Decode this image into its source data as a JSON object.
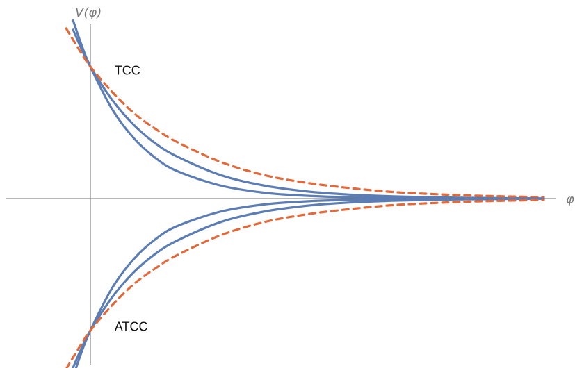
{
  "chart_data": {
    "type": "line",
    "title": "",
    "xlabel": "φ",
    "ylabel": "V(φ)",
    "xlim": [
      -1,
      5.25
    ],
    "ylim": [
      -1.26,
      1.26
    ],
    "grid": false,
    "legend": "none",
    "annotations": [
      {
        "text": "TCC",
        "x": 0.28,
        "y": 0.97
      },
      {
        "text": "ATCC",
        "x": 0.28,
        "y": -0.97
      }
    ],
    "series": [
      {
        "style": "solid",
        "color": "#5b7db3",
        "x": [
          -0.2,
          -0.1,
          0,
          0.25,
          0.5,
          0.75,
          1,
          1.5,
          2,
          2.5,
          3,
          3.5,
          4,
          4.5,
          5.25
        ],
        "y": [
          1.35,
          1.16,
          1.0,
          0.68,
          0.46,
          0.31,
          0.21,
          0.1,
          0.045,
          0.021,
          0.01,
          0.005,
          0.002,
          0.001,
          0.0
        ]
      },
      {
        "style": "solid",
        "color": "#5b7db3",
        "x": [
          -0.2,
          -0.1,
          0,
          0.25,
          0.5,
          0.75,
          1,
          1.5,
          2,
          2.5,
          3,
          3.5,
          4,
          4.5,
          5.25
        ],
        "y": [
          1.28,
          1.13,
          1.0,
          0.75,
          0.56,
          0.42,
          0.32,
          0.18,
          0.1,
          0.055,
          0.03,
          0.017,
          0.009,
          0.005,
          0.001
        ]
      },
      {
        "style": "dashed",
        "color": "#e2693a",
        "x": [
          -0.28,
          -0.15,
          0,
          0.25,
          0.5,
          0.75,
          1,
          1.5,
          2,
          2.5,
          3,
          3.5,
          4,
          4.5,
          5.25
        ],
        "y": [
          1.29,
          1.15,
          1.0,
          0.81,
          0.65,
          0.53,
          0.43,
          0.28,
          0.18,
          0.12,
          0.08,
          0.05,
          0.033,
          0.021,
          0.011
        ]
      },
      {
        "style": "solid",
        "color": "#5b7db3",
        "x": [
          -0.2,
          -0.1,
          0,
          0.25,
          0.5,
          0.75,
          1,
          1.5,
          2,
          2.5,
          3,
          3.5,
          4,
          4.5,
          5.25
        ],
        "y": [
          -1.35,
          -1.16,
          -1.0,
          -0.68,
          -0.46,
          -0.31,
          -0.21,
          -0.1,
          -0.045,
          -0.021,
          -0.01,
          -0.005,
          -0.002,
          -0.001,
          0.0
        ]
      },
      {
        "style": "solid",
        "color": "#5b7db3",
        "x": [
          -0.2,
          -0.1,
          0,
          0.25,
          0.5,
          0.75,
          1,
          1.5,
          2,
          2.5,
          3,
          3.5,
          4,
          4.5,
          5.25
        ],
        "y": [
          -1.28,
          -1.13,
          -1.0,
          -0.75,
          -0.56,
          -0.42,
          -0.32,
          -0.18,
          -0.1,
          -0.055,
          -0.03,
          -0.017,
          -0.009,
          -0.005,
          -0.001
        ]
      },
      {
        "style": "dashed",
        "color": "#e2693a",
        "x": [
          -0.28,
          -0.15,
          0,
          0.25,
          0.5,
          0.75,
          1,
          1.5,
          2,
          2.5,
          3,
          3.5,
          4,
          4.5,
          5.25
        ],
        "y": [
          -1.29,
          -1.15,
          -1.0,
          -0.81,
          -0.65,
          -0.53,
          -0.43,
          -0.28,
          -0.18,
          -0.12,
          -0.08,
          -0.05,
          -0.033,
          -0.021,
          -0.011
        ]
      }
    ]
  }
}
